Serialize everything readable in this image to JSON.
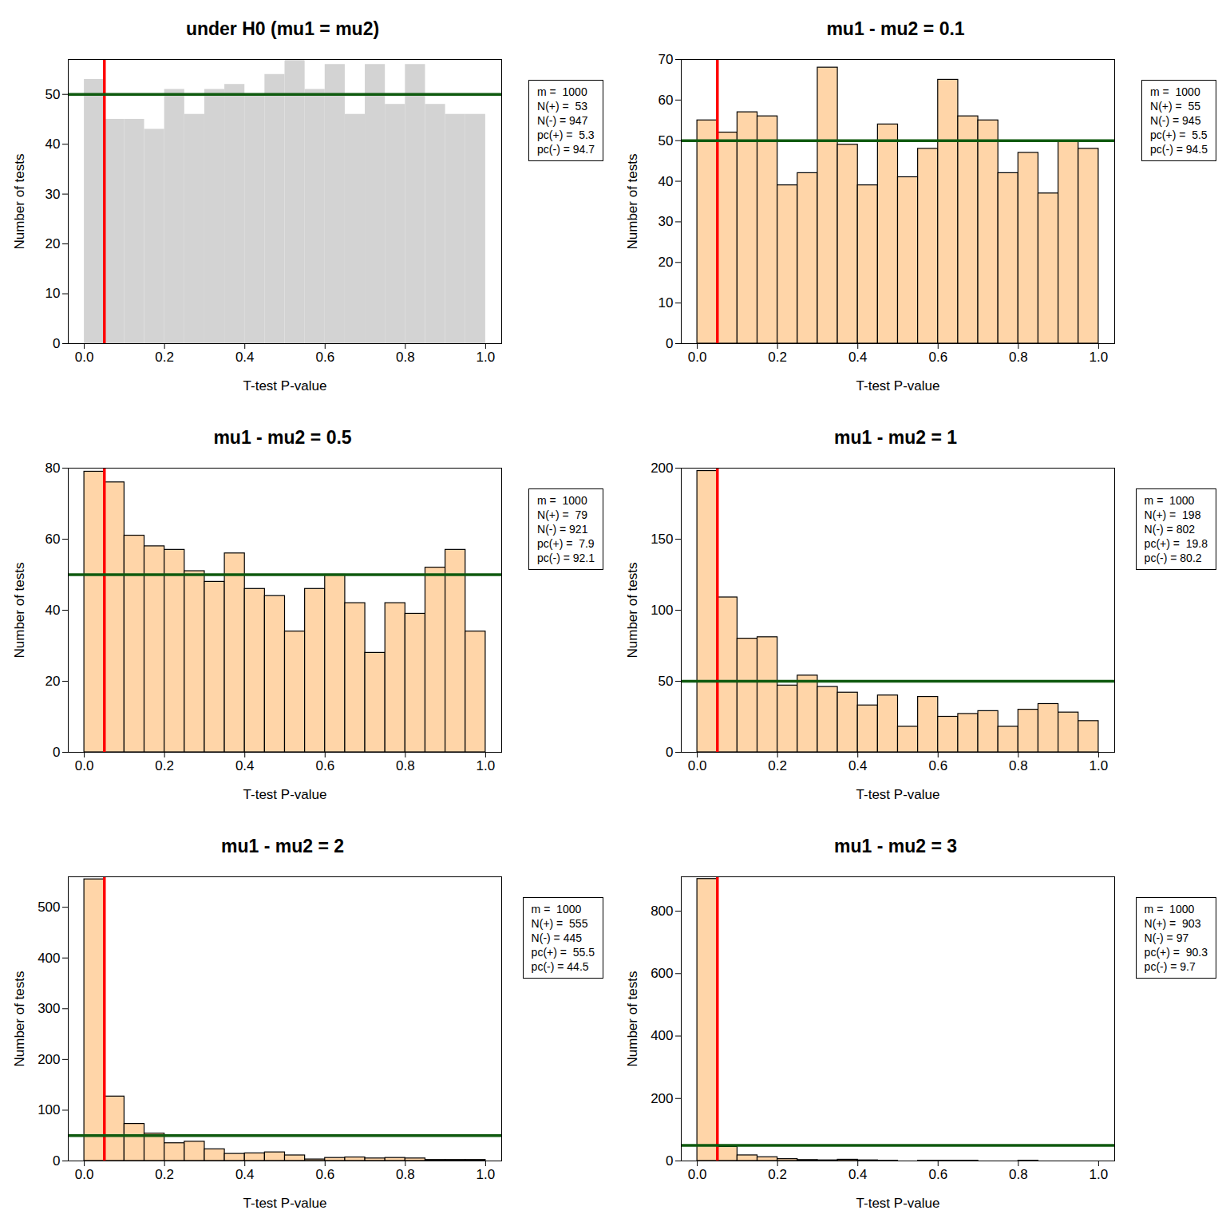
{
  "chart_data": [
    {
      "type": "histogram",
      "title": "under H0 (mu1 = mu2)",
      "x_label": "T-test P-value",
      "y_label": "Number of tests",
      "bins": [
        0,
        0.05,
        0.1,
        0.15,
        0.2,
        0.25,
        0.3,
        0.35,
        0.4,
        0.45,
        0.5,
        0.55,
        0.6,
        0.65,
        0.7,
        0.75,
        0.8,
        0.85,
        0.9,
        0.95,
        1
      ],
      "values": [
        53,
        45,
        45,
        43,
        51,
        46,
        51,
        52,
        50,
        54,
        57,
        51,
        56,
        46,
        56,
        48,
        56,
        48,
        46,
        46
      ],
      "color": "#d3d3d3",
      "line_style": "none",
      "xlim": [
        -0.04,
        1.04
      ],
      "xticks": [
        {
          "value": 0,
          "label": "0.0"
        },
        {
          "value": 0.2,
          "label": "0.2"
        },
        {
          "value": 0.4,
          "label": "0.4"
        },
        {
          "value": 0.6,
          "label": "0.6"
        },
        {
          "value": 0.8,
          "label": "0.8"
        },
        {
          "value": 1,
          "label": "1.0"
        }
      ],
      "ylim": [
        0,
        57
      ],
      "yticks": [
        0,
        10,
        20,
        30,
        40,
        50
      ],
      "reference_lines": [
        {
          "axis": "x",
          "value": 0.05,
          "color": "#ff0000"
        },
        {
          "axis": "y",
          "value": 50,
          "color": "#0f5a0f"
        }
      ],
      "annotations": [
        "m =  1000",
        "N(+) =  53",
        "N(-) = 947",
        "pc(+) =  5.3",
        "pc(-) = 94.7"
      ]
    },
    {
      "type": "histogram",
      "title": "mu1 - mu2 = 0.1",
      "x_label": "T-test P-value",
      "y_label": "Number of tests",
      "bins": [
        0,
        0.05,
        0.1,
        0.15,
        0.2,
        0.25,
        0.3,
        0.35,
        0.4,
        0.45,
        0.5,
        0.55,
        0.6,
        0.65,
        0.7,
        0.75,
        0.8,
        0.85,
        0.9,
        0.95,
        1
      ],
      "values": [
        55,
        52,
        57,
        56,
        39,
        42,
        68,
        49,
        39,
        54,
        41,
        48,
        65,
        56,
        55,
        42,
        47,
        37,
        50,
        48
      ],
      "color": "#ffd5a8",
      "line_style": "solid",
      "xlim": [
        -0.04,
        1.04
      ],
      "xticks": [
        {
          "value": 0,
          "label": "0.0"
        },
        {
          "value": 0.2,
          "label": "0.2"
        },
        {
          "value": 0.4,
          "label": "0.4"
        },
        {
          "value": 0.6,
          "label": "0.6"
        },
        {
          "value": 0.8,
          "label": "0.8"
        },
        {
          "value": 1,
          "label": "1.0"
        }
      ],
      "ylim": [
        0,
        70
      ],
      "yticks": [
        0,
        10,
        20,
        30,
        40,
        50,
        60,
        70
      ],
      "reference_lines": [
        {
          "axis": "x",
          "value": 0.05,
          "color": "#ff0000"
        },
        {
          "axis": "y",
          "value": 50,
          "color": "#0f5a0f"
        }
      ],
      "annotations": [
        "m =  1000",
        "N(+) =  55",
        "N(-) = 945",
        "pc(+) =  5.5",
        "pc(-) = 94.5"
      ]
    },
    {
      "type": "histogram",
      "title": "mu1 - mu2 = 0.5",
      "x_label": "T-test P-value",
      "y_label": "Number of tests",
      "bins": [
        0,
        0.05,
        0.1,
        0.15,
        0.2,
        0.25,
        0.3,
        0.35,
        0.4,
        0.45,
        0.5,
        0.55,
        0.6,
        0.65,
        0.7,
        0.75,
        0.8,
        0.85,
        0.9,
        0.95,
        1
      ],
      "values": [
        79,
        76,
        61,
        58,
        57,
        51,
        48,
        56,
        46,
        44,
        34,
        46,
        50,
        42,
        28,
        42,
        39,
        52,
        57,
        34
      ],
      "color": "#ffd5a8",
      "line_style": "solid",
      "xlim": [
        -0.04,
        1.04
      ],
      "xticks": [
        {
          "value": 0,
          "label": "0.0"
        },
        {
          "value": 0.2,
          "label": "0.2"
        },
        {
          "value": 0.4,
          "label": "0.4"
        },
        {
          "value": 0.6,
          "label": "0.6"
        },
        {
          "value": 0.8,
          "label": "0.8"
        },
        {
          "value": 1,
          "label": "1.0"
        }
      ],
      "ylim": [
        0,
        80
      ],
      "yticks": [
        0,
        20,
        40,
        60,
        80
      ],
      "reference_lines": [
        {
          "axis": "x",
          "value": 0.05,
          "color": "#ff0000"
        },
        {
          "axis": "y",
          "value": 50,
          "color": "#0f5a0f"
        }
      ],
      "annotations": [
        "m =  1000",
        "N(+) =  79",
        "N(-) = 921",
        "pc(+) =  7.9",
        "pc(-) = 92.1"
      ]
    },
    {
      "type": "histogram",
      "title": "mu1 - mu2 = 1",
      "x_label": "T-test P-value",
      "y_label": "Number of tests",
      "bins": [
        0,
        0.05,
        0.1,
        0.15,
        0.2,
        0.25,
        0.3,
        0.35,
        0.4,
        0.45,
        0.5,
        0.55,
        0.6,
        0.65,
        0.7,
        0.75,
        0.8,
        0.85,
        0.9,
        0.95,
        1
      ],
      "values": [
        198,
        109,
        80,
        81,
        47,
        54,
        46,
        42,
        33,
        40,
        18,
        39,
        25,
        27,
        29,
        18,
        30,
        34,
        28,
        22
      ],
      "color": "#ffd5a8",
      "line_style": "solid",
      "xlim": [
        -0.04,
        1.04
      ],
      "xticks": [
        {
          "value": 0,
          "label": "0.0"
        },
        {
          "value": 0.2,
          "label": "0.2"
        },
        {
          "value": 0.4,
          "label": "0.4"
        },
        {
          "value": 0.6,
          "label": "0.6"
        },
        {
          "value": 0.8,
          "label": "0.8"
        },
        {
          "value": 1,
          "label": "1.0"
        }
      ],
      "ylim": [
        0,
        200
      ],
      "yticks": [
        0,
        50,
        100,
        150,
        200
      ],
      "reference_lines": [
        {
          "axis": "x",
          "value": 0.05,
          "color": "#ff0000"
        },
        {
          "axis": "y",
          "value": 50,
          "color": "#0f5a0f"
        }
      ],
      "annotations": [
        "m =  1000",
        "N(+) =  198",
        "N(-) = 802",
        "pc(+) =  19.8",
        "pc(-) = 80.2"
      ]
    },
    {
      "type": "histogram",
      "title": "mu1 - mu2 = 2",
      "x_label": "T-test P-value",
      "y_label": "Number of tests",
      "bins": [
        0,
        0.05,
        0.1,
        0.15,
        0.2,
        0.25,
        0.3,
        0.35,
        0.4,
        0.45,
        0.5,
        0.55,
        0.6,
        0.65,
        0.7,
        0.75,
        0.8,
        0.85,
        0.9,
        0.95,
        1
      ],
      "values": [
        555,
        127,
        73,
        54,
        35,
        38,
        23,
        14,
        15,
        17,
        11,
        3,
        6,
        7,
        5,
        6,
        5,
        2,
        2,
        2
      ],
      "color": "#ffd5a8",
      "line_style": "solid",
      "xlim": [
        -0.04,
        1.04
      ],
      "xticks": [
        {
          "value": 0,
          "label": "0.0"
        },
        {
          "value": 0.2,
          "label": "0.2"
        },
        {
          "value": 0.4,
          "label": "0.4"
        },
        {
          "value": 0.6,
          "label": "0.6"
        },
        {
          "value": 0.8,
          "label": "0.8"
        },
        {
          "value": 1,
          "label": "1.0"
        }
      ],
      "ylim": [
        0,
        560
      ],
      "yticks": [
        0,
        100,
        200,
        300,
        400,
        500
      ],
      "reference_lines": [
        {
          "axis": "x",
          "value": 0.05,
          "color": "#ff0000"
        },
        {
          "axis": "y",
          "value": 50,
          "color": "#0f5a0f"
        }
      ],
      "annotations": [
        "m =  1000",
        "N(+) =  555",
        "N(-) = 445",
        "pc(+) =  55.5",
        "pc(-) = 44.5"
      ]
    },
    {
      "type": "histogram",
      "title": "mu1 - mu2 = 3",
      "x_label": "T-test P-value",
      "y_label": "Number of tests",
      "bins": [
        0,
        0.05,
        0.1,
        0.15,
        0.2,
        0.25,
        0.3,
        0.35,
        0.4,
        0.45,
        0.5,
        0.55,
        0.6,
        0.65,
        0.7,
        0.75,
        0.8,
        0.85,
        0.9,
        0.95,
        1
      ],
      "values": [
        903,
        45,
        18,
        12,
        6,
        3,
        2,
        4,
        2,
        1,
        0,
        1,
        1,
        1,
        0,
        0,
        1,
        0,
        0,
        0
      ],
      "color": "#ffd5a8",
      "line_style": "solid",
      "xlim": [
        -0.04,
        1.04
      ],
      "xticks": [
        {
          "value": 0,
          "label": "0.0"
        },
        {
          "value": 0.2,
          "label": "0.2"
        },
        {
          "value": 0.4,
          "label": "0.4"
        },
        {
          "value": 0.6,
          "label": "0.6"
        },
        {
          "value": 0.8,
          "label": "0.8"
        },
        {
          "value": 1,
          "label": "1.0"
        }
      ],
      "ylim": [
        0,
        910
      ],
      "yticks": [
        0,
        200,
        400,
        600,
        800
      ],
      "reference_lines": [
        {
          "axis": "x",
          "value": 0.05,
          "color": "#ff0000"
        },
        {
          "axis": "y",
          "value": 50,
          "color": "#0f5a0f"
        }
      ],
      "annotations": [
        "m =  1000",
        "N(+) =  903",
        "N(-) = 97",
        "pc(+) =  90.3",
        "pc(-) = 9.7"
      ]
    }
  ]
}
